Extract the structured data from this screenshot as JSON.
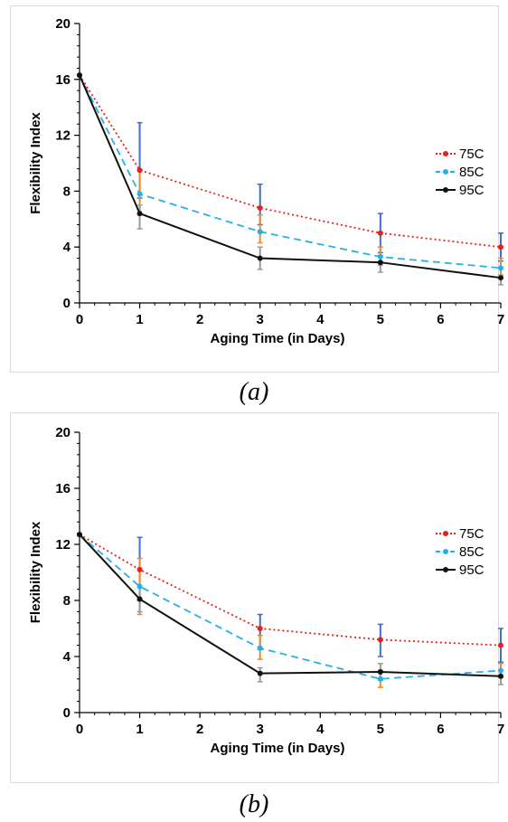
{
  "captions": [
    "(a)",
    "(b)"
  ],
  "chart_data": [
    {
      "type": "line",
      "xlabel": "Aging Time (in Days)",
      "ylabel": "Flexibility Index",
      "xlim": [
        0,
        7
      ],
      "ylim": [
        0,
        20
      ],
      "xticks": [
        "0",
        "1",
        "2",
        "3",
        "4",
        "5",
        "6",
        "7"
      ],
      "yticks": [
        "0",
        "4",
        "8",
        "12",
        "16",
        "20"
      ],
      "x": [
        0,
        1,
        3,
        5,
        7
      ],
      "legend_position": "right",
      "series": [
        {
          "name": "75C",
          "color": "#e8201a",
          "dash": "2,3",
          "values": [
            16.3,
            9.5,
            6.8,
            5.0,
            4.0
          ],
          "err_upper": [
            0,
            12.9,
            8.5,
            6.4,
            5.0
          ],
          "err_lower": [
            0,
            7.5,
            5.6,
            3.6,
            3.0
          ],
          "err_color": "#3f6fc7"
        },
        {
          "name": "85C",
          "color": "#25b1e6",
          "dash": "8,5",
          "values": [
            16.3,
            7.8,
            5.1,
            3.3,
            2.5
          ],
          "err_upper": [
            0,
            9.5,
            6.3,
            4.0,
            3.2
          ],
          "err_lower": [
            0,
            6.3,
            4.3,
            2.7,
            1.8
          ],
          "err_color": "#ed8c2c"
        },
        {
          "name": "95C",
          "color": "#111111",
          "dash": "",
          "values": [
            16.3,
            6.4,
            3.2,
            2.9,
            1.8
          ],
          "err_upper": [
            0,
            7.0,
            4.0,
            3.4,
            2.0
          ],
          "err_lower": [
            0,
            5.3,
            2.4,
            2.2,
            1.3
          ],
          "err_color": "#9a9a9a"
        }
      ]
    },
    {
      "type": "line",
      "xlabel": "Aging Time (in Days)",
      "ylabel": "Flexibility Index",
      "xlim": [
        0,
        7
      ],
      "ylim": [
        0,
        20
      ],
      "xticks": [
        "0",
        "1",
        "2",
        "3",
        "4",
        "5",
        "6",
        "7"
      ],
      "yticks": [
        "0",
        "4",
        "8",
        "12",
        "16",
        "20"
      ],
      "x": [
        0,
        1,
        3,
        5,
        7
      ],
      "legend_position": "right",
      "series": [
        {
          "name": "75C",
          "color": "#e8201a",
          "dash": "2,3",
          "values": [
            12.7,
            10.2,
            6.0,
            5.2,
            4.8
          ],
          "err_upper": [
            0,
            12.5,
            7.0,
            6.3,
            6.0
          ],
          "err_lower": [
            0,
            8.0,
            4.5,
            4.0,
            3.6
          ],
          "err_color": "#3f6fc7"
        },
        {
          "name": "85C",
          "color": "#25b1e6",
          "dash": "8,5",
          "values": [
            12.7,
            9.0,
            4.6,
            2.4,
            3.0
          ],
          "err_upper": [
            0,
            11.0,
            5.5,
            3.0,
            3.5
          ],
          "err_lower": [
            0,
            7.0,
            3.8,
            1.8,
            2.5
          ],
          "err_color": "#ed8c2c"
        },
        {
          "name": "95C",
          "color": "#111111",
          "dash": "",
          "values": [
            12.7,
            8.1,
            2.8,
            2.9,
            2.6
          ],
          "err_upper": [
            0,
            9.0,
            3.2,
            3.5,
            3.0
          ],
          "err_lower": [
            0,
            7.2,
            2.2,
            2.3,
            2.0
          ],
          "err_color": "#9a9a9a"
        }
      ]
    }
  ]
}
